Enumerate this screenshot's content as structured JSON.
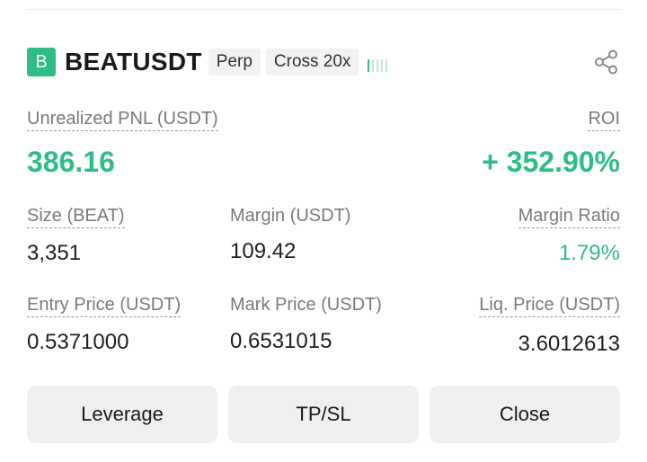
{
  "position": {
    "symbol_initial": "B",
    "symbol": "BEATUSDT",
    "tags": [
      "Perp",
      "Cross 20x"
    ],
    "icons": {
      "share": "share-icon",
      "signal": "signal-bars-icon"
    },
    "colors": {
      "accent": "#2ebd85",
      "button_bg": "#efefef",
      "label": "#7a7a7a"
    }
  },
  "pnl": {
    "label": "Unrealized PNL (USDT)",
    "value": "386.16",
    "roi_label": "ROI",
    "roi_value": "+ 352.90%"
  },
  "stats": {
    "size_label": "Size (BEAT)",
    "size_value": "3,351",
    "margin_label": "Margin (USDT)",
    "margin_value": "109.42",
    "margin_ratio_label": "Margin Ratio",
    "margin_ratio_value": "1.79%",
    "entry_label": "Entry Price (USDT)",
    "entry_value": "0.5371000",
    "mark_label": "Mark Price (USDT)",
    "mark_value": "0.6531015",
    "liq_label": "Liq. Price (USDT)",
    "liq_value": "3.6012613"
  },
  "actions": {
    "leverage": "Leverage",
    "tpsl": "TP/SL",
    "close": "Close"
  }
}
